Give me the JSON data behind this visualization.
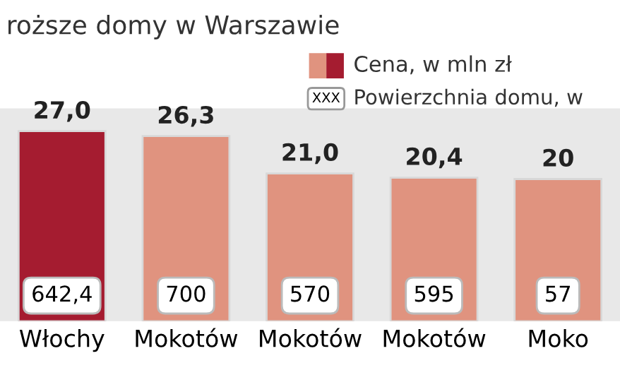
{
  "chart_data": {
    "type": "bar",
    "title": "roższe domy w Warszawie",
    "categories": [
      "Włochy",
      "Mokotów",
      "Mokotów",
      "Mokotów",
      "Moko"
    ],
    "series": [
      {
        "name": "Cena, w mln zł",
        "colors": [
          "#a51c30",
          "#e0937f",
          "#e0937f",
          "#e0937f",
          "#e0937f"
        ],
        "values": [
          27.0,
          26.3,
          21.0,
          20.4,
          20.2
        ],
        "value_labels": [
          "27,0",
          "26,3",
          "21,0",
          "20,4",
          "20"
        ]
      }
    ],
    "annotations": [
      "642,4",
      "700",
      "570",
      "595",
      "57",
      "XXX",
      "Powierzchnia domu, w"
    ],
    "legend": "top right"
  }
}
